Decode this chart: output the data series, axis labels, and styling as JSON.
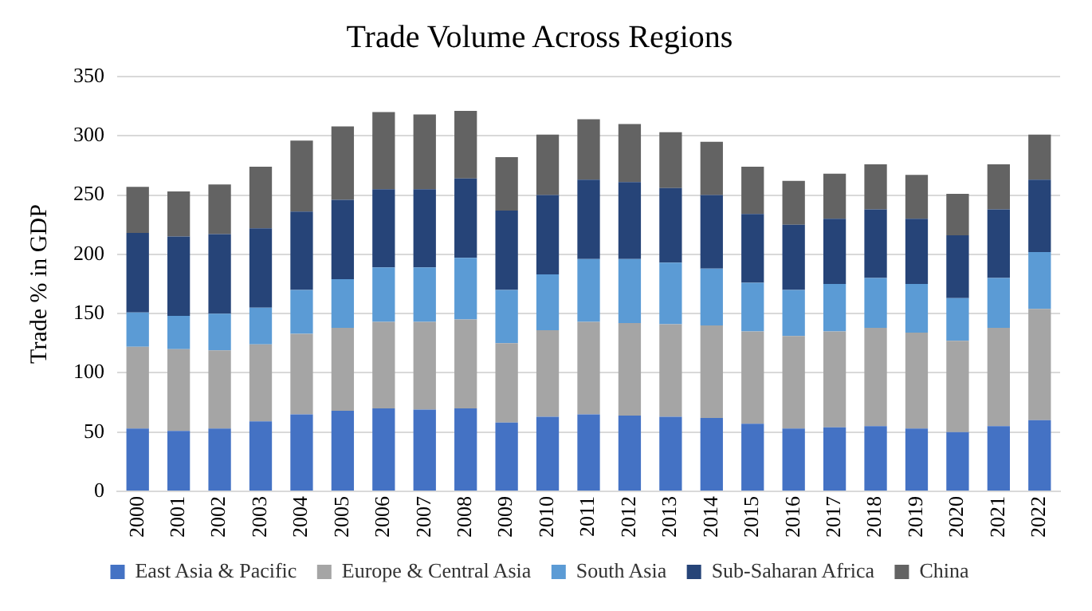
{
  "chart_data": {
    "type": "bar",
    "stacked": true,
    "title": "Trade Volume Across Regions",
    "ylabel": "Trade % in GDP",
    "categories": [
      "2000",
      "2001",
      "2002",
      "2003",
      "2004",
      "2005",
      "2006",
      "2007",
      "2008",
      "2009",
      "2010",
      "2011",
      "2012",
      "2013",
      "2014",
      "2015",
      "2016",
      "2017",
      "2018",
      "2019",
      "2020",
      "2021",
      "2022"
    ],
    "series": [
      {
        "name": "East Asia & Pacific",
        "color": "#4472c4",
        "values": [
          53,
          51,
          53,
          59,
          65,
          68,
          70,
          69,
          70,
          58,
          63,
          65,
          64,
          63,
          62,
          57,
          53,
          54,
          55,
          53,
          50,
          55,
          60
        ]
      },
      {
        "name": "Europe & Central Asia",
        "color": "#a5a5a5",
        "values": [
          69,
          69,
          66,
          65,
          68,
          70,
          73,
          74,
          75,
          67,
          73,
          78,
          78,
          78,
          78,
          78,
          78,
          81,
          83,
          81,
          77,
          83,
          94
        ]
      },
      {
        "name": "South Asia",
        "color": "#5b9bd5",
        "values": [
          29,
          28,
          31,
          31,
          37,
          41,
          46,
          46,
          52,
          45,
          47,
          53,
          54,
          52,
          48,
          41,
          39,
          40,
          42,
          41,
          36,
          42,
          48
        ]
      },
      {
        "name": "Sub-Saharan Africa",
        "color": "#264478",
        "values": [
          67,
          67,
          67,
          67,
          66,
          67,
          66,
          66,
          67,
          67,
          67,
          67,
          65,
          63,
          62,
          58,
          55,
          55,
          58,
          55,
          53,
          58,
          61
        ]
      },
      {
        "name": "China",
        "color": "#636363",
        "values": [
          39,
          38,
          42,
          52,
          60,
          62,
          65,
          63,
          57,
          45,
          51,
          51,
          49,
          47,
          45,
          40,
          37,
          38,
          38,
          37,
          35,
          38,
          38
        ]
      }
    ],
    "ylim": [
      0,
      350
    ],
    "yticks": [
      0,
      50,
      100,
      150,
      200,
      250,
      300,
      350
    ],
    "grid": "y",
    "legend": "bottom"
  }
}
